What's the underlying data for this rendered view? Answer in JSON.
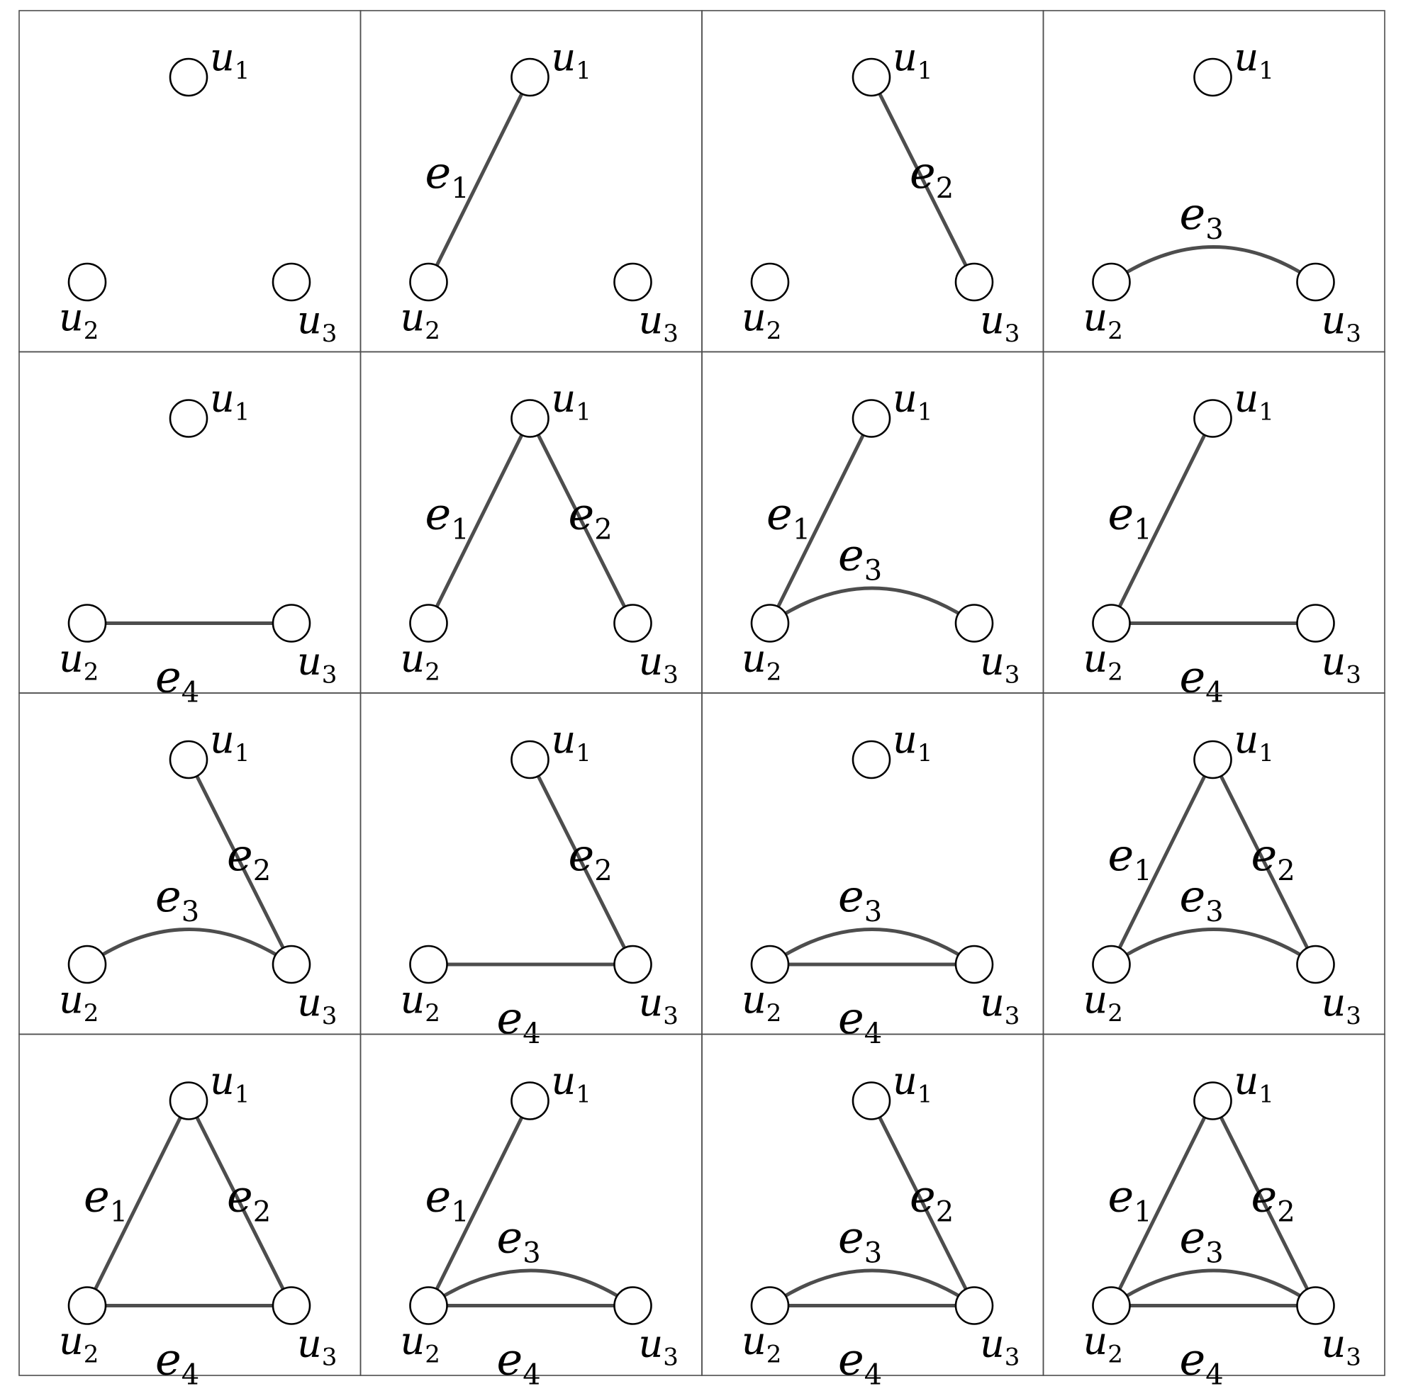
{
  "diagram": {
    "nodes": [
      {
        "id": "u1",
        "letter": "u",
        "sub": "1"
      },
      {
        "id": "u2",
        "letter": "u",
        "sub": "2"
      },
      {
        "id": "u3",
        "letter": "u",
        "sub": "3"
      }
    ],
    "edges": [
      {
        "id": "e1",
        "letter": "e",
        "sub": "1",
        "from": "u1",
        "to": "u2",
        "shape": "straight"
      },
      {
        "id": "e2",
        "letter": "e",
        "sub": "2",
        "from": "u1",
        "to": "u3",
        "shape": "straight"
      },
      {
        "id": "e3",
        "letter": "e",
        "sub": "3",
        "from": "u2",
        "to": "u3",
        "shape": "arc"
      },
      {
        "id": "e4",
        "letter": "e",
        "sub": "4",
        "from": "u2",
        "to": "u3",
        "shape": "straight"
      }
    ],
    "panels": [
      {
        "edges": []
      },
      {
        "edges": [
          "e1"
        ]
      },
      {
        "edges": [
          "e2"
        ]
      },
      {
        "edges": [
          "e3"
        ]
      },
      {
        "edges": [
          "e4"
        ]
      },
      {
        "edges": [
          "e1",
          "e2"
        ]
      },
      {
        "edges": [
          "e1",
          "e3"
        ]
      },
      {
        "edges": [
          "e1",
          "e4"
        ]
      },
      {
        "edges": [
          "e2",
          "e3"
        ]
      },
      {
        "edges": [
          "e2",
          "e4"
        ]
      },
      {
        "edges": [
          "e3",
          "e4"
        ]
      },
      {
        "edges": [
          "e1",
          "e2",
          "e3"
        ]
      },
      {
        "edges": [
          "e1",
          "e2",
          "e4"
        ]
      },
      {
        "edges": [
          "e1",
          "e3",
          "e4"
        ]
      },
      {
        "edges": [
          "e2",
          "e3",
          "e4"
        ]
      },
      {
        "edges": [
          "e1",
          "e2",
          "e3",
          "e4"
        ]
      }
    ],
    "colors": {
      "edge": "#4d4d4d",
      "node_stroke": "#000000",
      "node_fill": "#ffffff",
      "border": "#4d4d4d"
    }
  }
}
